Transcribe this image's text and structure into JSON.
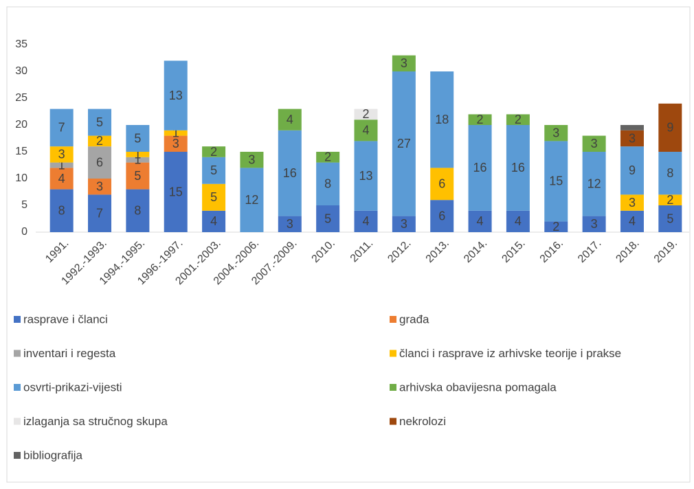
{
  "chart_data": {
    "type": "stacked_bar",
    "categories": [
      "1991.",
      "1992.-1993.",
      "1994.-1995.",
      "1996.-1997.",
      "2001.-2003.",
      "2004.-2006.",
      "2007.-2009.",
      "2010.",
      "2011.",
      "2012.",
      "2013.",
      "2014.",
      "2015.",
      "2016.",
      "2017.",
      "2018.",
      "2019."
    ],
    "series": [
      {
        "name": "rasprave i članci",
        "color": "#4472c4",
        "values": [
          8,
          7,
          8,
          15,
          4,
          null,
          3,
          5,
          4,
          3,
          6,
          4,
          4,
          2,
          3,
          4,
          5
        ]
      },
      {
        "name": "građa",
        "color": "#ed7d31",
        "values": [
          4,
          3,
          5,
          3,
          null,
          null,
          null,
          null,
          null,
          null,
          null,
          null,
          null,
          null,
          null,
          null,
          null
        ]
      },
      {
        "name": "inventari i regesta",
        "color": "#a5a5a5",
        "values": [
          1,
          6,
          1,
          null,
          null,
          null,
          null,
          null,
          null,
          null,
          null,
          null,
          null,
          null,
          null,
          null,
          null
        ]
      },
      {
        "name": "članci i rasprave iz arhivske teorije i prakse",
        "color": "#ffc000",
        "values": [
          3,
          2,
          1,
          1,
          5,
          null,
          null,
          null,
          null,
          null,
          6,
          null,
          null,
          null,
          null,
          3,
          2
        ]
      },
      {
        "name": "osvrti-prikazi-vijesti",
        "color": "#5b9bd5",
        "values": [
          7,
          5,
          5,
          13,
          5,
          12,
          16,
          8,
          13,
          27,
          18,
          16,
          16,
          15,
          12,
          9,
          8
        ]
      },
      {
        "name": "arhivska obavijesna pomagala",
        "color": "#70ad47",
        "values": [
          null,
          null,
          null,
          null,
          2,
          3,
          4,
          2,
          4,
          3,
          null,
          2,
          2,
          3,
          3,
          null,
          null
        ]
      },
      {
        "name": "izlaganja sa stručnog skupa",
        "color": "#e7e6e6",
        "values": [
          null,
          null,
          null,
          null,
          null,
          null,
          null,
          null,
          2,
          null,
          null,
          null,
          null,
          null,
          null,
          null,
          null
        ]
      },
      {
        "name": "nekrolozi",
        "color": "#9e480e",
        "values": [
          null,
          null,
          null,
          null,
          null,
          null,
          null,
          null,
          null,
          null,
          null,
          null,
          null,
          null,
          null,
          3,
          9
        ]
      },
      {
        "name": "bibliografija",
        "color": "#636363",
        "show_labels": false,
        "values": [
          null,
          null,
          null,
          null,
          null,
          null,
          null,
          null,
          null,
          null,
          null,
          null,
          null,
          null,
          null,
          1,
          null
        ]
      }
    ],
    "ylim": [
      0,
      35
    ],
    "yticks": [
      0,
      5,
      10,
      15,
      20,
      25,
      30,
      35
    ],
    "grid": false,
    "legend": "bottom"
  }
}
